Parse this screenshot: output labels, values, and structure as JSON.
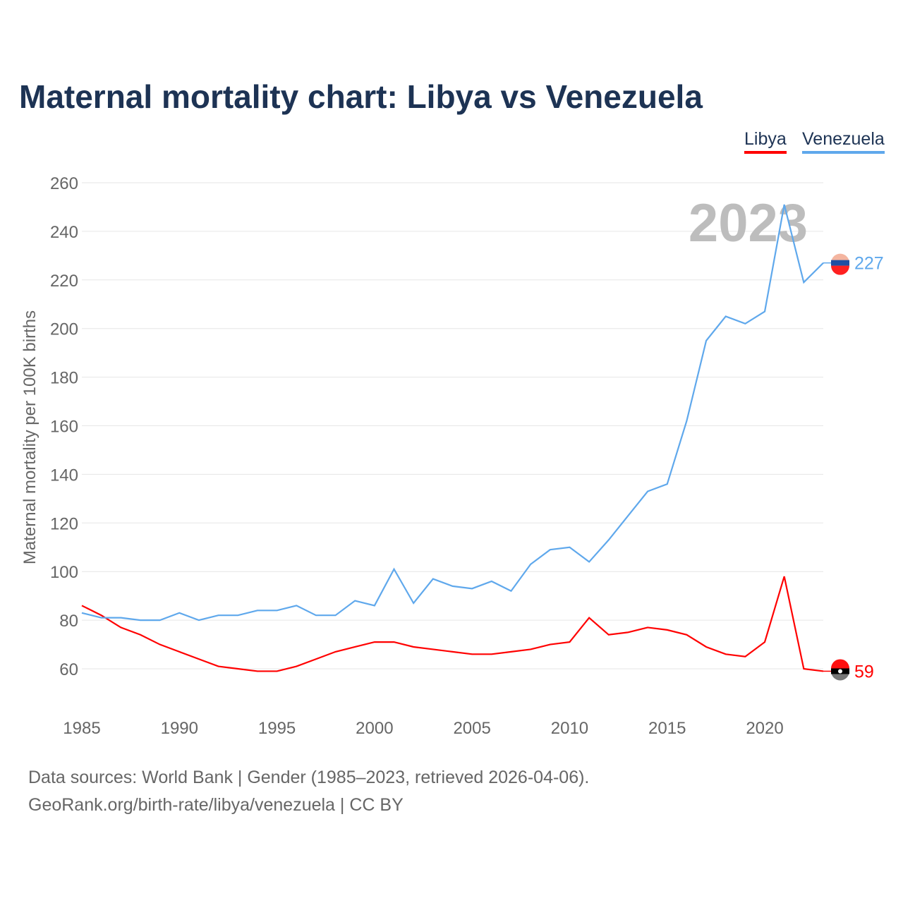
{
  "title": "Maternal mortality chart: Libya vs Venezuela",
  "legend": [
    "Libya",
    "Venezuela"
  ],
  "source_line1": "Data sources: World Bank | Gender (1985–2023, retrieved 2026-04-06).",
  "source_line2": "GeoRank.org/birth-rate/libya/venezuela | CC BY",
  "year_watermark": "2023",
  "chart_data": {
    "type": "line",
    "title": "Maternal mortality chart: Libya vs Venezuela",
    "xlabel": "",
    "ylabel": "Maternal mortality per 100K births",
    "xlim": [
      1985,
      2023
    ],
    "ylim": [
      45,
      260
    ],
    "yticks": [
      60,
      80,
      100,
      120,
      140,
      160,
      180,
      200,
      220,
      240,
      260
    ],
    "xticks": [
      1985,
      1990,
      1995,
      2000,
      2005,
      2010,
      2015,
      2020
    ],
    "grid": true,
    "legend_position": "top-right",
    "x": [
      1985,
      1986,
      1987,
      1988,
      1989,
      1990,
      1991,
      1992,
      1993,
      1994,
      1995,
      1996,
      1997,
      1998,
      1999,
      2000,
      2001,
      2002,
      2003,
      2004,
      2005,
      2006,
      2007,
      2008,
      2009,
      2010,
      2011,
      2012,
      2013,
      2014,
      2015,
      2016,
      2017,
      2018,
      2019,
      2020,
      2021,
      2022,
      2023
    ],
    "series": [
      {
        "name": "Libya",
        "color": "#ff0000",
        "end_label": "59",
        "values": [
          86,
          82,
          77,
          74,
          70,
          67,
          64,
          61,
          60,
          59,
          59,
          61,
          64,
          67,
          69,
          71,
          71,
          69,
          68,
          67,
          66,
          66,
          67,
          68,
          70,
          71,
          81,
          74,
          75,
          77,
          76,
          74,
          69,
          66,
          65,
          71,
          98,
          60,
          59
        ]
      },
      {
        "name": "Venezuela",
        "color": "#5fa8ec",
        "end_label": "227",
        "values": [
          83,
          81,
          81,
          80,
          80,
          83,
          80,
          82,
          82,
          84,
          84,
          86,
          82,
          82,
          88,
          86,
          101,
          87,
          97,
          94,
          93,
          96,
          92,
          103,
          109,
          110,
          104,
          113,
          123,
          133,
          136,
          162,
          195,
          205,
          202,
          207,
          251,
          219,
          227
        ]
      }
    ]
  }
}
